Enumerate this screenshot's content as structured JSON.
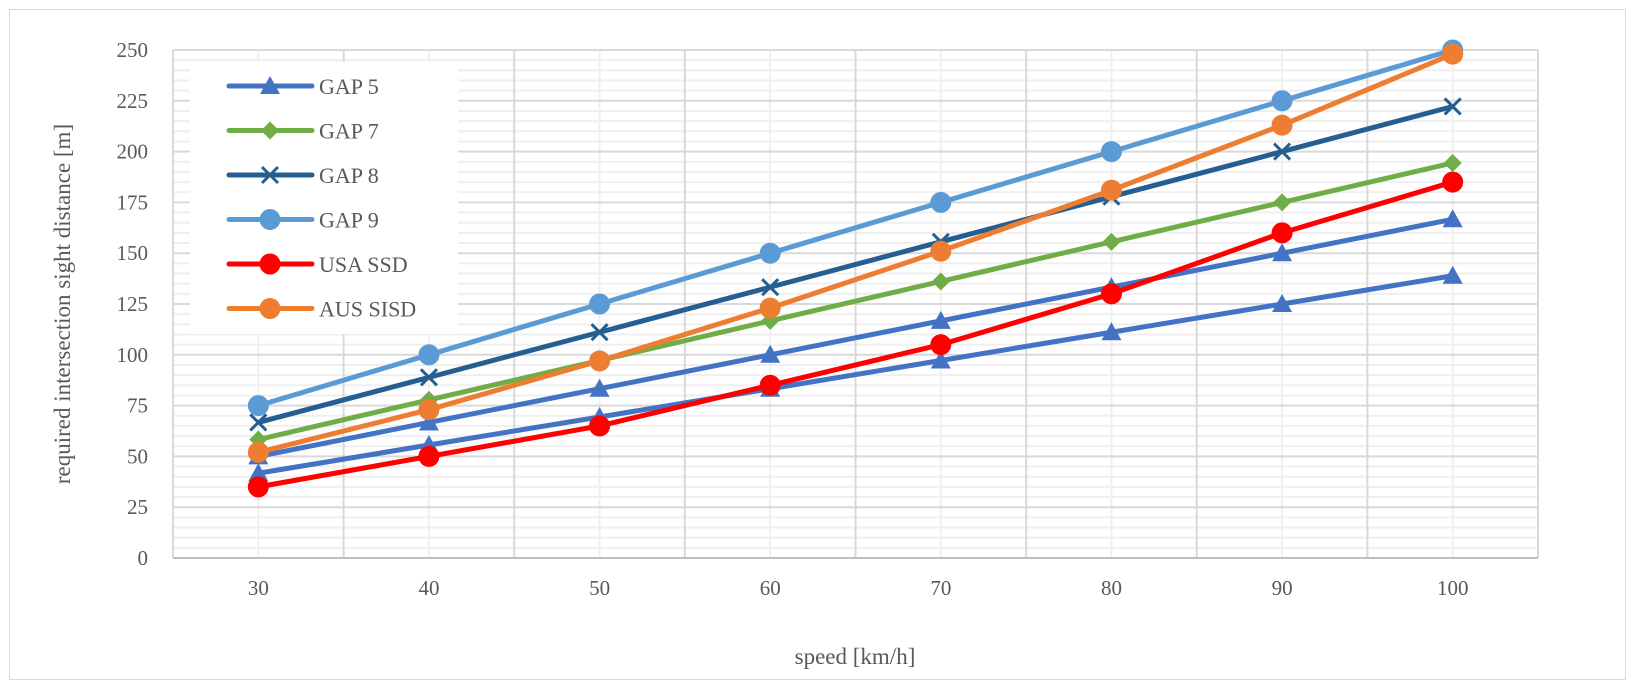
{
  "chart_data": {
    "type": "line",
    "title": "",
    "xlabel": "speed [km/h]",
    "ylabel": "required intersection sight distance [m]",
    "categories": [
      "30",
      "40",
      "50",
      "60",
      "70",
      "80",
      "90",
      "100"
    ],
    "ylim": [
      0,
      250
    ],
    "yticks": [
      0,
      25,
      50,
      75,
      100,
      125,
      150,
      175,
      200,
      225,
      250
    ],
    "grid": true,
    "legend_position": "top-left",
    "series": [
      {
        "name": "GAP 5",
        "color": "#4472c4",
        "marker": "triangle",
        "values": [
          41.7,
          55.6,
          69.4,
          83.3,
          97.2,
          111.1,
          125,
          138.9
        ],
        "in_legend": true
      },
      {
        "name": "",
        "color": "#4472c4",
        "marker": "triangle",
        "values": [
          50,
          66.7,
          83.3,
          100,
          116.7,
          133.3,
          150,
          166.7
        ],
        "in_legend": false
      },
      {
        "name": "GAP 7",
        "color": "#70ad47",
        "marker": "diamond",
        "values": [
          58.3,
          77.8,
          97.2,
          116.7,
          136.1,
          155.6,
          175,
          194.4
        ],
        "in_legend": true
      },
      {
        "name": "GAP 8",
        "color": "#255e91",
        "marker": "x",
        "values": [
          66.7,
          88.9,
          111.1,
          133.3,
          155.6,
          177.8,
          200,
          222.2
        ],
        "in_legend": true
      },
      {
        "name": "GAP 9",
        "color": "#5b9bd5",
        "marker": "circle",
        "values": [
          75,
          100,
          125,
          150,
          175,
          200,
          225,
          250
        ],
        "in_legend": true
      },
      {
        "name": "USA SSD",
        "color": "#ff0000",
        "marker": "circle",
        "values": [
          35,
          50,
          65,
          85,
          105,
          130,
          160,
          185
        ],
        "in_legend": true
      },
      {
        "name": "AUS SISD",
        "color": "#ed7d31",
        "marker": "circle",
        "values": [
          52,
          73,
          97,
          123,
          151,
          181,
          213,
          248
        ],
        "in_legend": true
      }
    ]
  }
}
